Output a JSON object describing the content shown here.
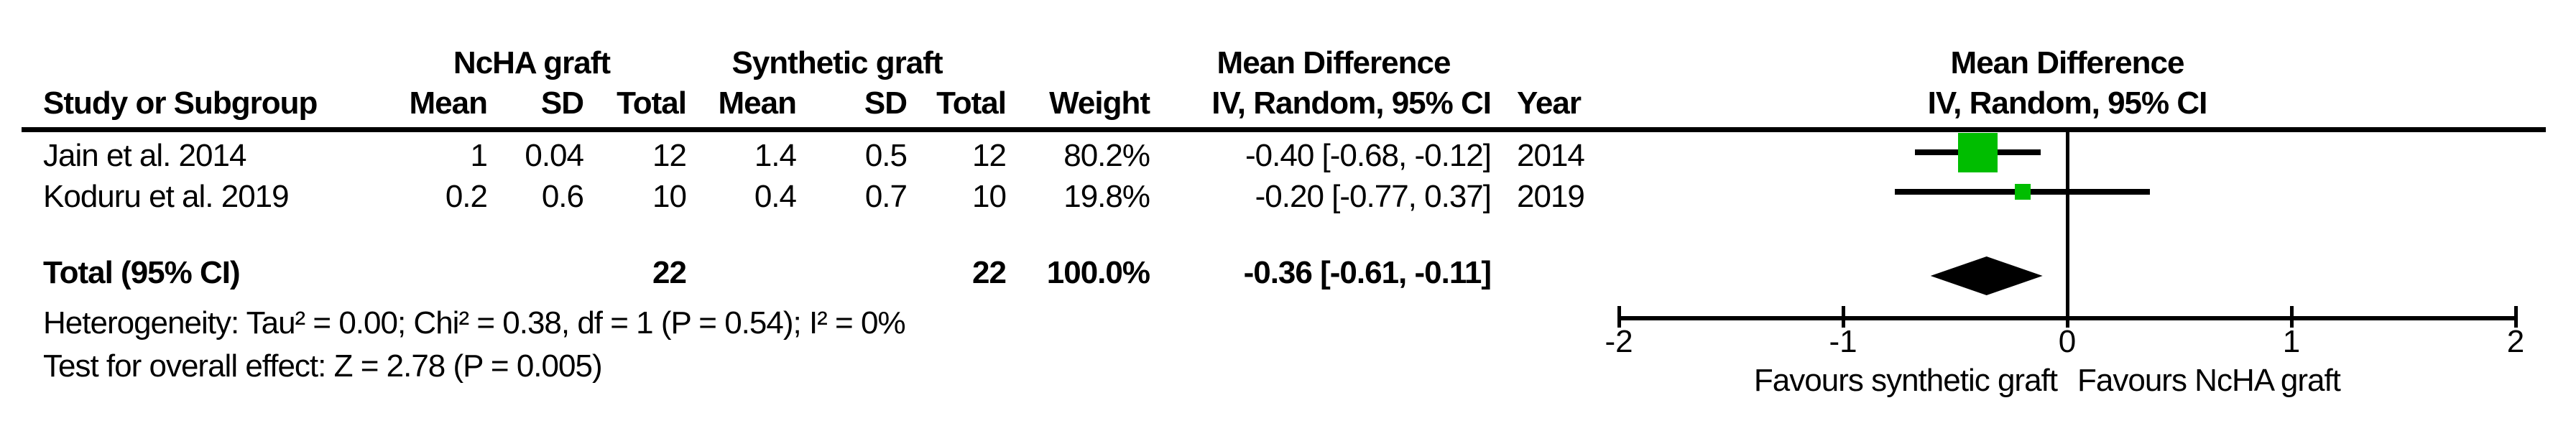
{
  "colors": {
    "marker_green": "#00BD00",
    "ink": "#000000"
  },
  "table": {
    "group_headers": {
      "ncha": "NcHA graft",
      "synthetic": "Synthetic graft",
      "md_left": "Mean Difference",
      "md_right": "Mean Difference"
    },
    "col_headers": {
      "study": "Study or Subgroup",
      "mean1": "Mean",
      "sd1": "SD",
      "total1": "Total",
      "mean2": "Mean",
      "sd2": "SD",
      "total2": "Total",
      "weight": "Weight",
      "ci": "IV, Random, 95% CI",
      "year": "Year",
      "ci_right": "IV, Random, 95% CI"
    },
    "rows": [
      {
        "study": "Jain et al. 2014",
        "mean1": "1",
        "sd1": "0.04",
        "total1": "12",
        "mean2": "1.4",
        "sd2": "0.5",
        "total2": "12",
        "weight": "80.2%",
        "ci": "-0.40 [-0.68, -0.12]",
        "year": "2014"
      },
      {
        "study": "Koduru et al. 2019",
        "mean1": "0.2",
        "sd1": "0.6",
        "total1": "10",
        "mean2": "0.4",
        "sd2": "0.7",
        "total2": "10",
        "weight": "19.8%",
        "ci": "-0.20 [-0.77, 0.37]",
        "year": "2019"
      }
    ],
    "total_row": {
      "label": "Total (95% CI)",
      "total1": "22",
      "total2": "22",
      "weight": "100.0%",
      "ci": "-0.36 [-0.61, -0.11]"
    },
    "heterogeneity": "Heterogeneity: Tau² = 0.00; Chi² = 0.38, df = 1 (P = 0.54); I² = 0%",
    "overall_effect": "Test for overall effect: Z = 2.78 (P = 0.005)"
  },
  "chart_data": {
    "type": "forest",
    "effect_measure": "Mean Difference",
    "method": "IV, Random, 95% CI",
    "x_axis": {
      "min": -2,
      "max": 2,
      "ticks": [
        -2,
        -1,
        0,
        1,
        2
      ]
    },
    "favours_left": "Favours synthetic graft",
    "favours_right": "Favours NcHA graft",
    "studies": [
      {
        "name": "Jain et al. 2014",
        "mean1": 1,
        "sd1": 0.04,
        "n1": 12,
        "mean2": 1.4,
        "sd2": 0.5,
        "n2": 12,
        "weight_pct": 80.2,
        "md": -0.4,
        "ci_low": -0.68,
        "ci_high": -0.12,
        "year": 2014
      },
      {
        "name": "Koduru et al. 2019",
        "mean1": 0.2,
        "sd1": 0.6,
        "n1": 10,
        "mean2": 0.4,
        "sd2": 0.7,
        "n2": 10,
        "weight_pct": 19.8,
        "md": -0.2,
        "ci_low": -0.77,
        "ci_high": 0.37,
        "year": 2019
      }
    ],
    "total": {
      "n1": 22,
      "n2": 22,
      "weight_pct": 100.0,
      "md": -0.36,
      "ci_low": -0.61,
      "ci_high": -0.11
    },
    "heterogeneity": {
      "tau2": 0.0,
      "chi2": 0.38,
      "df": 1,
      "p": 0.54,
      "i2_pct": 0
    },
    "overall_effect": {
      "z": 2.78,
      "p": 0.005
    }
  }
}
